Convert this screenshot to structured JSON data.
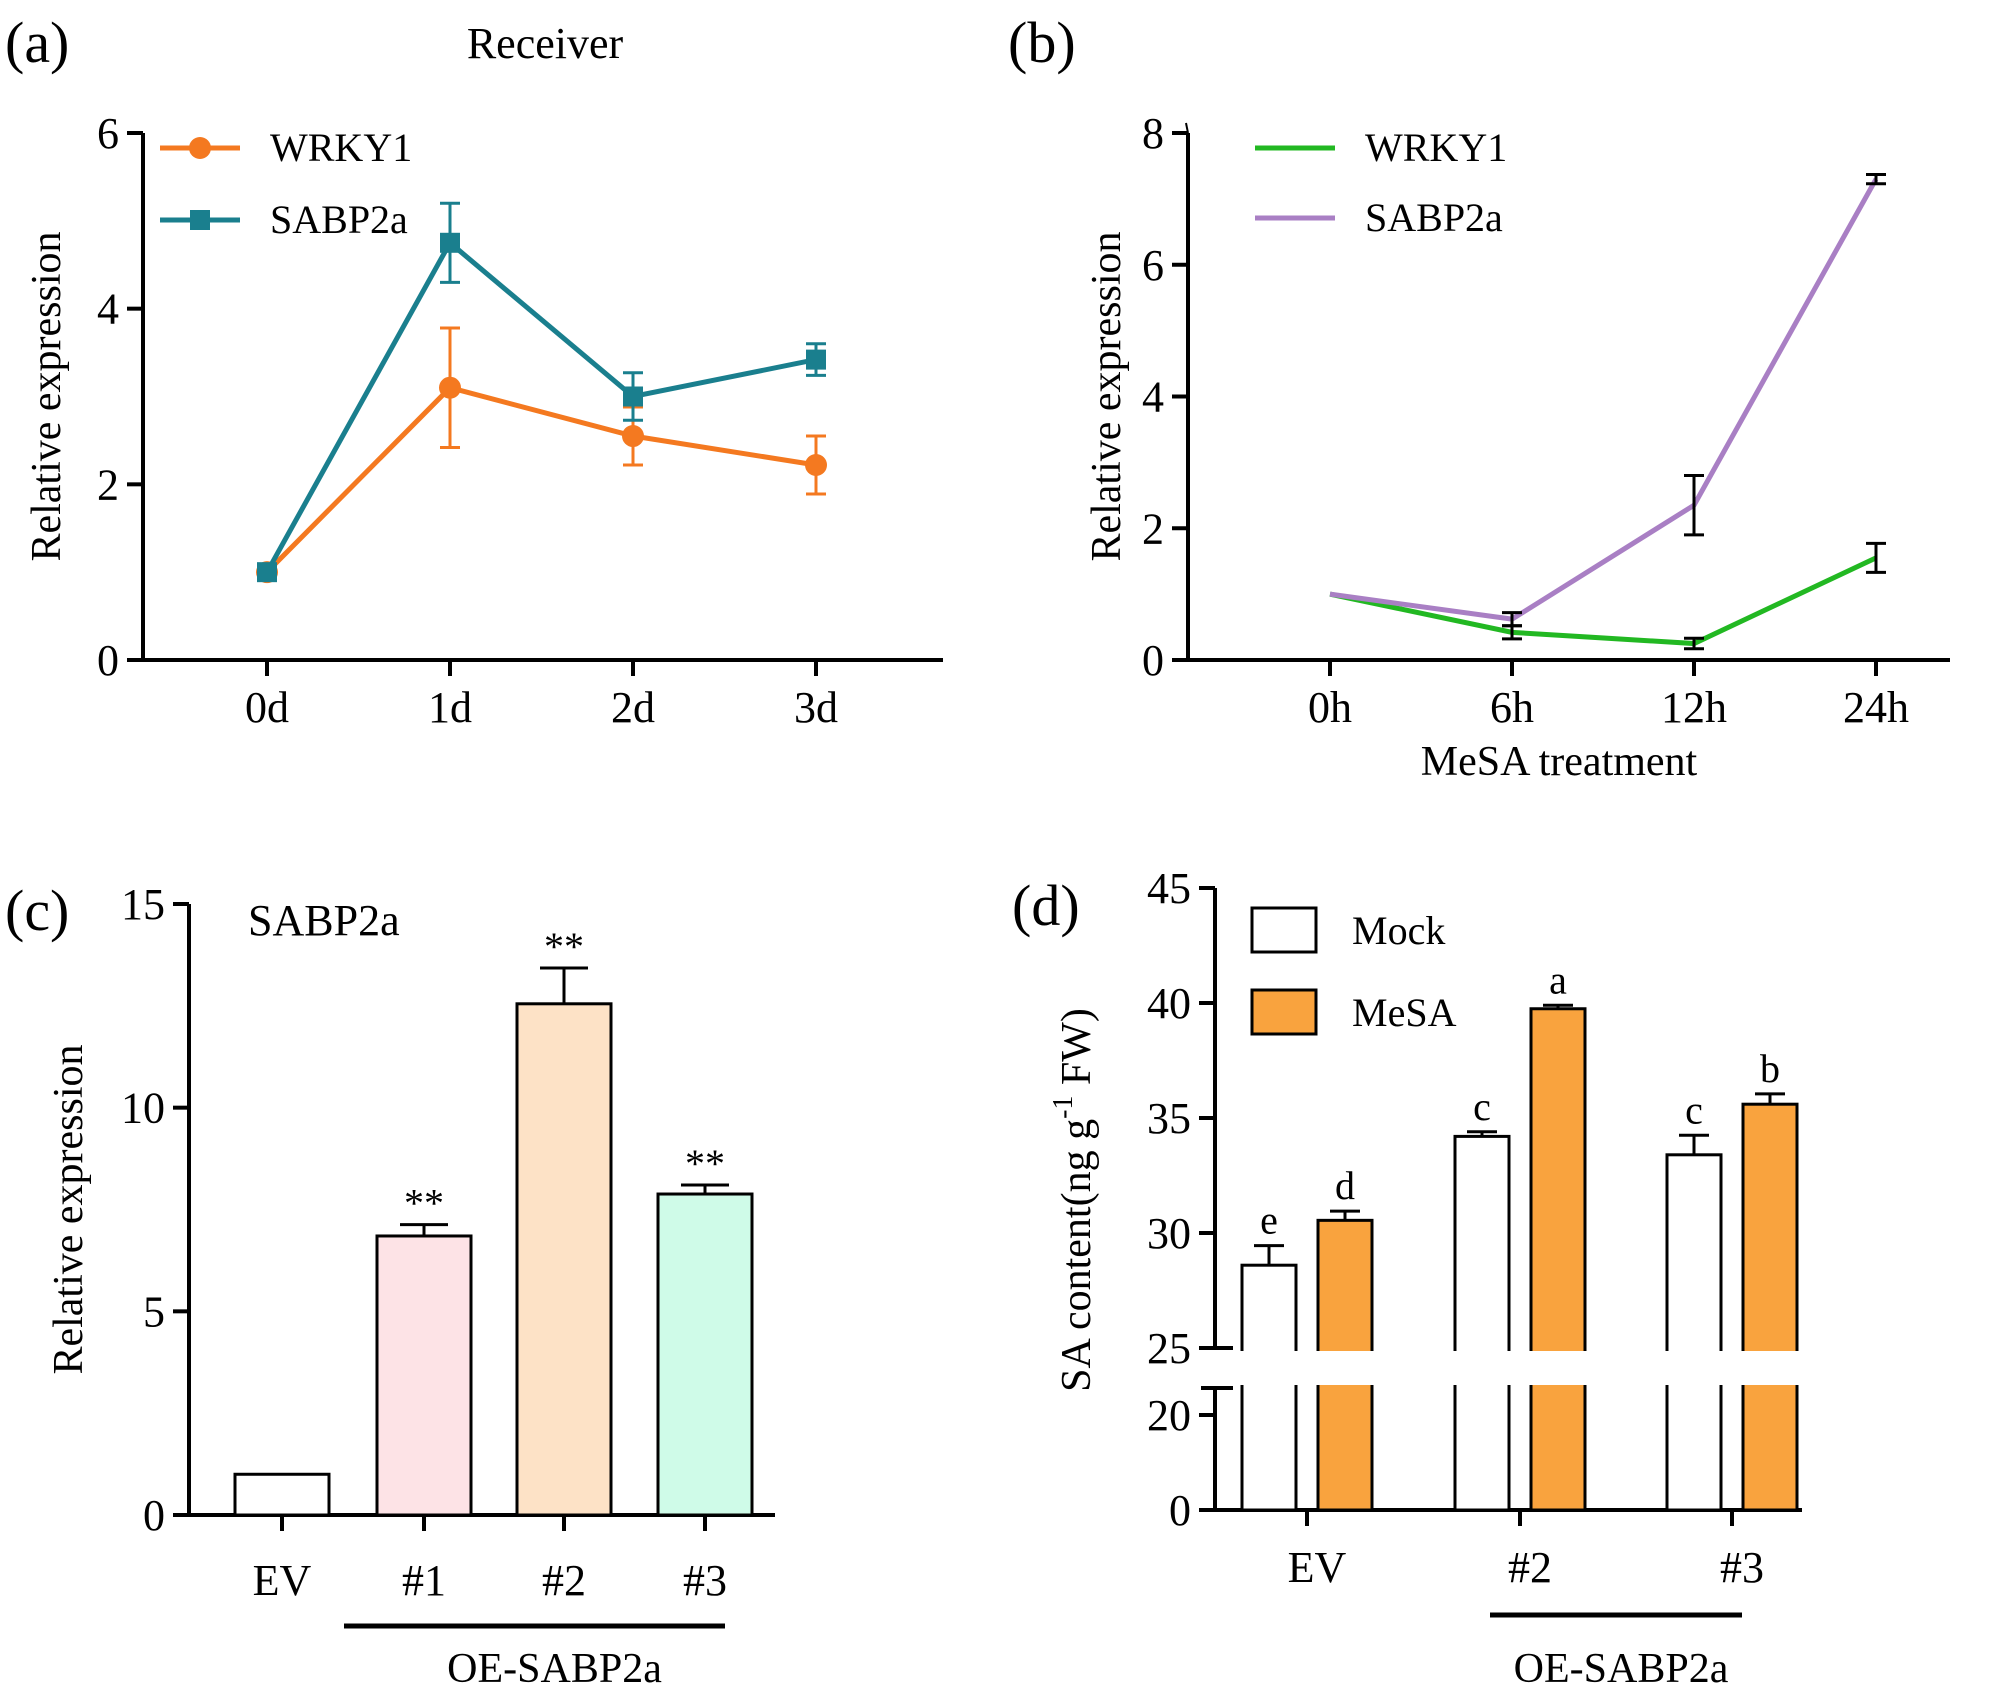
{
  "chart_data": [
    {
      "panel": "(a)",
      "type": "line",
      "title": "Receiver",
      "xlabel": "",
      "ylabel": "Relative expression",
      "categories": [
        "0d",
        "1d",
        "2d",
        "3d"
      ],
      "ylim": [
        0,
        6
      ],
      "yticks": [
        0,
        2,
        4,
        6
      ],
      "legend_position": "top-left",
      "series": [
        {
          "name": "WRKY1",
          "values": [
            1.0,
            3.1,
            2.55,
            2.22
          ],
          "errors": [
            0.05,
            0.68,
            0.33,
            0.33
          ],
          "color": "#f47920",
          "marker": "circle"
        },
        {
          "name": "SABP2a",
          "values": [
            1.0,
            4.75,
            3.0,
            3.42
          ],
          "errors": [
            0.05,
            0.45,
            0.27,
            0.18
          ],
          "color": "#1a7f8e",
          "marker": "square"
        }
      ]
    },
    {
      "panel": "(b)",
      "type": "line",
      "title": "",
      "xlabel": "MeSA treatment",
      "ylabel": "Relative expression",
      "categories": [
        "0h",
        "6h",
        "12h",
        "24h"
      ],
      "ylim": [
        0,
        8
      ],
      "yticks": [
        0,
        2,
        4,
        6,
        8
      ],
      "legend_position": "top-left",
      "series": [
        {
          "name": "WRKY1",
          "values": [
            1.0,
            0.42,
            0.25,
            1.55
          ],
          "errors": [
            0.02,
            0.1,
            0.08,
            0.22
          ],
          "color": "#22b822"
        },
        {
          "name": "SABP2a",
          "values": [
            1.0,
            0.62,
            2.35,
            7.3
          ],
          "errors": [
            0.02,
            0.1,
            0.45,
            0.07
          ],
          "color": "#a97fc4"
        }
      ]
    },
    {
      "panel": "(c)",
      "type": "bar",
      "title": "SABP2a",
      "xlabel": "",
      "ylabel": "Relative expression",
      "categories": [
        "EV",
        "#1",
        "#2",
        "#3"
      ],
      "values": [
        1.0,
        6.85,
        12.55,
        7.88
      ],
      "errors": [
        0,
        0.28,
        0.88,
        0.22
      ],
      "colors": [
        "#ffffff",
        "#fde3e6",
        "#fde2c6",
        "#cffbe8"
      ],
      "annotations": [
        "",
        "**",
        "**",
        "**"
      ],
      "ylim": [
        0,
        15
      ],
      "yticks": [
        0,
        5,
        10,
        15
      ],
      "group_label": {
        "text": "OE-SABP2a",
        "from": 1,
        "to": 3
      }
    },
    {
      "panel": "(d)",
      "type": "bar",
      "title": "",
      "xlabel": "",
      "ylabel": "SA content(ng g",
      "ylabel_superscript": "-1",
      "ylabel_tail": " FW)",
      "categories": [
        "EV",
        "#2",
        "#3"
      ],
      "ylim": [
        0,
        45
      ],
      "axis_break": [
        20,
        25
      ],
      "yticks": [
        0,
        20,
        25,
        30,
        35,
        40,
        45
      ],
      "legend_position": "top-left",
      "group_label": {
        "text": "OE-SABP2a",
        "from": 1,
        "to": 2
      },
      "series": [
        {
          "name": "Mock",
          "values": [
            28.6,
            34.2,
            33.4
          ],
          "errors": [
            0.85,
            0.2,
            0.85
          ],
          "letters": [
            "e",
            "c",
            "c"
          ],
          "color": "#ffffff"
        },
        {
          "name": "MeSA",
          "values": [
            30.55,
            39.75,
            35.6
          ],
          "errors": [
            0.4,
            0.15,
            0.45
          ],
          "letters": [
            "d",
            "a",
            "b"
          ],
          "color": "#f9a33e"
        }
      ]
    }
  ]
}
